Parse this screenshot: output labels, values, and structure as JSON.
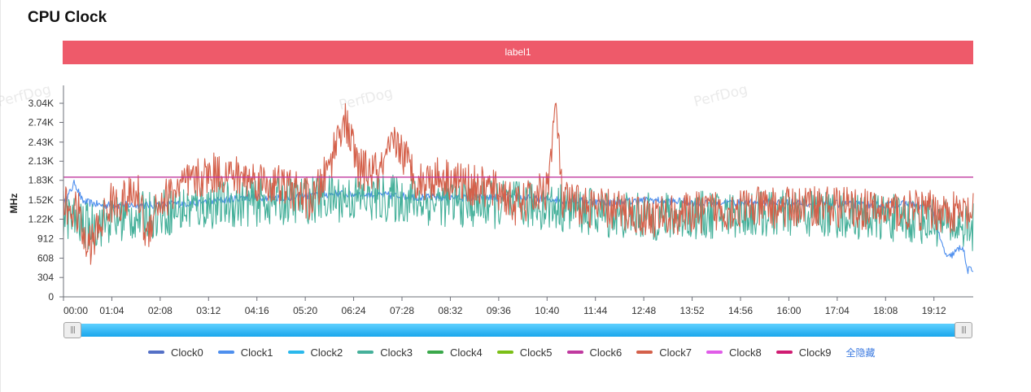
{
  "page": {
    "title": "CPU Clock"
  },
  "label_bar": {
    "text": "label1",
    "color": "#ee5a6a"
  },
  "watermarks": [
    "PerfDog",
    "PerfDog",
    "PerfDog"
  ],
  "controls": {
    "hide_all": "全隐藏"
  },
  "chart_data": {
    "type": "line",
    "title": "CPU Clock",
    "ylabel": "MHz",
    "xlabel": "",
    "ylim": [
      0,
      3040
    ],
    "yticks": [
      {
        "value": 0,
        "label": "0"
      },
      {
        "value": 304,
        "label": "304"
      },
      {
        "value": 608,
        "label": "608"
      },
      {
        "value": 912,
        "label": "912"
      },
      {
        "value": 1220,
        "label": "1.22K"
      },
      {
        "value": 1520,
        "label": "1.52K"
      },
      {
        "value": 1830,
        "label": "1.83K"
      },
      {
        "value": 2130,
        "label": "2.13K"
      },
      {
        "value": 2430,
        "label": "2.43K"
      },
      {
        "value": 2740,
        "label": "2.74K"
      },
      {
        "value": 3040,
        "label": "3.04K"
      }
    ],
    "xlim_seconds": [
      0,
      1204
    ],
    "xticks": [
      "00:00",
      "01:04",
      "02:08",
      "03:12",
      "04:16",
      "05:20",
      "06:24",
      "07:28",
      "08:32",
      "09:36",
      "10:40",
      "11:44",
      "12:48",
      "13:52",
      "14:56",
      "16:00",
      "17:04",
      "18:08",
      "19:12"
    ],
    "xtick_step_seconds": 64,
    "grid": false,
    "legend_placement": "bottom",
    "series": [
      {
        "name": "Clock0",
        "color": "#5470c6",
        "values": []
      },
      {
        "name": "Clock1",
        "color": "#4e8fee",
        "anchors": [
          [
            0,
            1440
          ],
          [
            15,
            1800
          ],
          [
            25,
            1500
          ],
          [
            50,
            1440
          ],
          [
            120,
            1440
          ],
          [
            180,
            1480
          ],
          [
            240,
            1560
          ],
          [
            300,
            1560
          ],
          [
            360,
            1620
          ],
          [
            420,
            1600
          ],
          [
            480,
            1560
          ],
          [
            540,
            1560
          ],
          [
            600,
            1560
          ],
          [
            660,
            1520
          ],
          [
            720,
            1480
          ],
          [
            780,
            1520
          ],
          [
            840,
            1480
          ],
          [
            900,
            1480
          ],
          [
            960,
            1480
          ],
          [
            1020,
            1460
          ],
          [
            1080,
            1440
          ],
          [
            1120,
            1460
          ],
          [
            1150,
            1380
          ],
          [
            1160,
            900
          ],
          [
            1170,
            600
          ],
          [
            1180,
            700
          ],
          [
            1190,
            800
          ],
          [
            1196,
            420
          ]
        ],
        "noise": 60,
        "values": []
      },
      {
        "name": "Clock2",
        "color": "#2ab8ec",
        "values": []
      },
      {
        "name": "Clock3",
        "color": "#45b09a",
        "anchors": [
          [
            0,
            1300
          ],
          [
            30,
            1100
          ],
          [
            60,
            1200
          ],
          [
            120,
            1300
          ],
          [
            200,
            1450
          ],
          [
            280,
            1500
          ],
          [
            360,
            1550
          ],
          [
            420,
            1550
          ],
          [
            480,
            1500
          ],
          [
            540,
            1450
          ],
          [
            600,
            1450
          ],
          [
            660,
            1400
          ],
          [
            720,
            1300
          ],
          [
            780,
            1250
          ],
          [
            840,
            1280
          ],
          [
            900,
            1300
          ],
          [
            960,
            1300
          ],
          [
            1020,
            1300
          ],
          [
            1080,
            1250
          ],
          [
            1140,
            1200
          ],
          [
            1196,
            1100
          ]
        ],
        "noise": 380,
        "values": []
      },
      {
        "name": "Clock4",
        "color": "#3aa84a",
        "values": []
      },
      {
        "name": "Clock5",
        "color": "#7bbf16",
        "values": []
      },
      {
        "name": "Clock6",
        "color": "#c0399f",
        "constant": 1880,
        "values": []
      },
      {
        "name": "Clock7",
        "color": "#d4604a",
        "anchors": [
          [
            0,
            1450
          ],
          [
            20,
            1300
          ],
          [
            30,
            750
          ],
          [
            40,
            900
          ],
          [
            60,
            1450
          ],
          [
            100,
            1600
          ],
          [
            110,
            900
          ],
          [
            120,
            1400
          ],
          [
            150,
            1700
          ],
          [
            200,
            1950
          ],
          [
            250,
            1850
          ],
          [
            300,
            1700
          ],
          [
            330,
            1500
          ],
          [
            350,
            2000
          ],
          [
            370,
            2800
          ],
          [
            380,
            2500
          ],
          [
            390,
            2000
          ],
          [
            420,
            1950
          ],
          [
            440,
            2450
          ],
          [
            470,
            1800
          ],
          [
            500,
            1900
          ],
          [
            540,
            1750
          ],
          [
            580,
            1650
          ],
          [
            600,
            1400
          ],
          [
            640,
            1700
          ],
          [
            652,
            3020
          ],
          [
            660,
            1500
          ],
          [
            700,
            1400
          ],
          [
            740,
            1350
          ],
          [
            780,
            1250
          ],
          [
            820,
            1300
          ],
          [
            860,
            1350
          ],
          [
            900,
            1400
          ],
          [
            940,
            1400
          ],
          [
            960,
            1400
          ],
          [
            1000,
            1450
          ],
          [
            1040,
            1400
          ],
          [
            1080,
            1350
          ],
          [
            1120,
            1350
          ],
          [
            1160,
            1350
          ],
          [
            1196,
            1300
          ]
        ],
        "noise": 330,
        "values": []
      },
      {
        "name": "Clock8",
        "color": "#e05ce8",
        "values": []
      },
      {
        "name": "Clock9",
        "color": "#d01c72",
        "values": []
      }
    ]
  }
}
